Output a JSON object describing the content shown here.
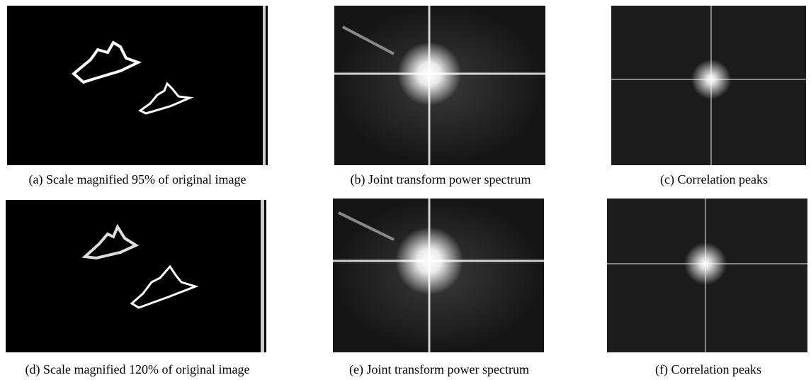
{
  "figure": {
    "panels": [
      {
        "caption": "(a) Scale magnified 95% of original image"
      },
      {
        "caption": "(b) Joint transform power spectrum"
      },
      {
        "caption": "(c) Correlation peaks"
      },
      {
        "caption": "(d) Scale magnified 120% of original image"
      },
      {
        "caption": "(e) Joint transform power spectrum"
      },
      {
        "caption": "(f) Correlation peaks"
      }
    ]
  }
}
